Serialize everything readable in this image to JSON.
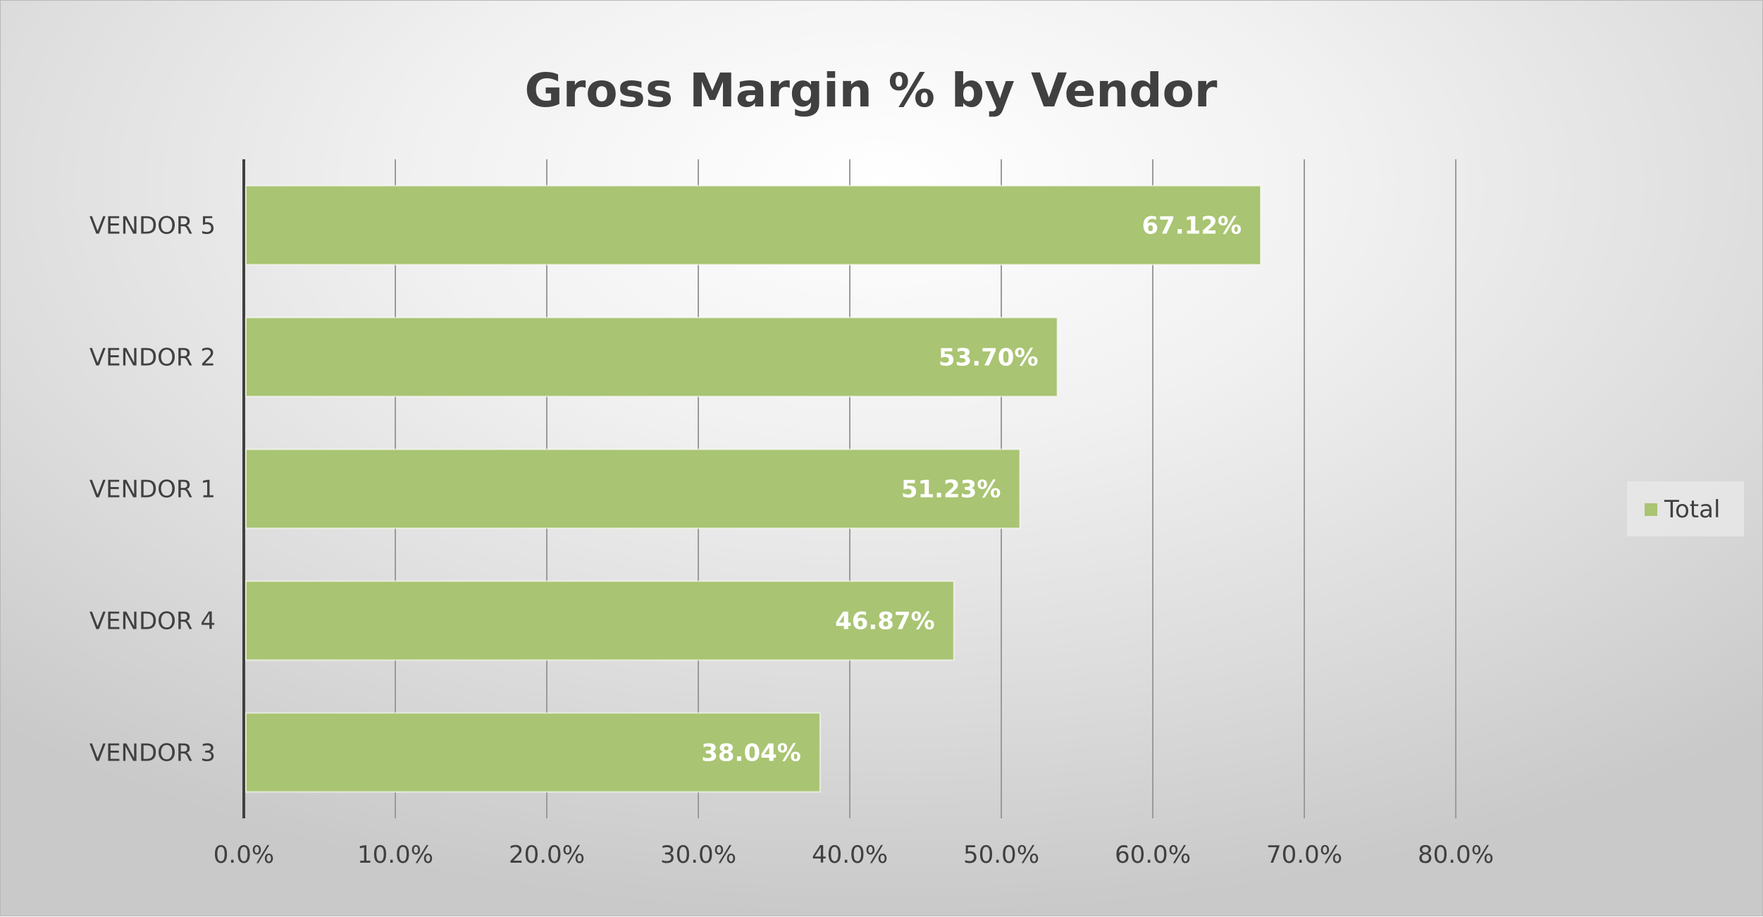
{
  "chart_data": {
    "type": "bar",
    "orientation": "horizontal",
    "title": "Gross Margin % by Vendor",
    "categories": [
      "VENDOR 5",
      "VENDOR 2",
      "VENDOR 1",
      "VENDOR 4",
      "VENDOR 3"
    ],
    "series": [
      {
        "name": "Total",
        "values": [
          67.12,
          53.7,
          51.23,
          46.87,
          38.04
        ],
        "data_labels": [
          "67.12%",
          "53.70%",
          "51.23%",
          "46.87%",
          "38.04%"
        ],
        "color": "#a9c472"
      }
    ],
    "xlim": [
      0,
      80
    ],
    "x_ticks": [
      0,
      10,
      20,
      30,
      40,
      50,
      60,
      70,
      80
    ],
    "x_tick_labels": [
      "0.0%",
      "10.0%",
      "20.0%",
      "30.0%",
      "40.0%",
      "50.0%",
      "60.0%",
      "70.0%",
      "80.0%"
    ],
    "grid": true,
    "legend_position": "right",
    "colors": {
      "bar": "#a9c472",
      "grid": "#9a9a9a",
      "axis": "#404040",
      "text": "#404040"
    }
  }
}
